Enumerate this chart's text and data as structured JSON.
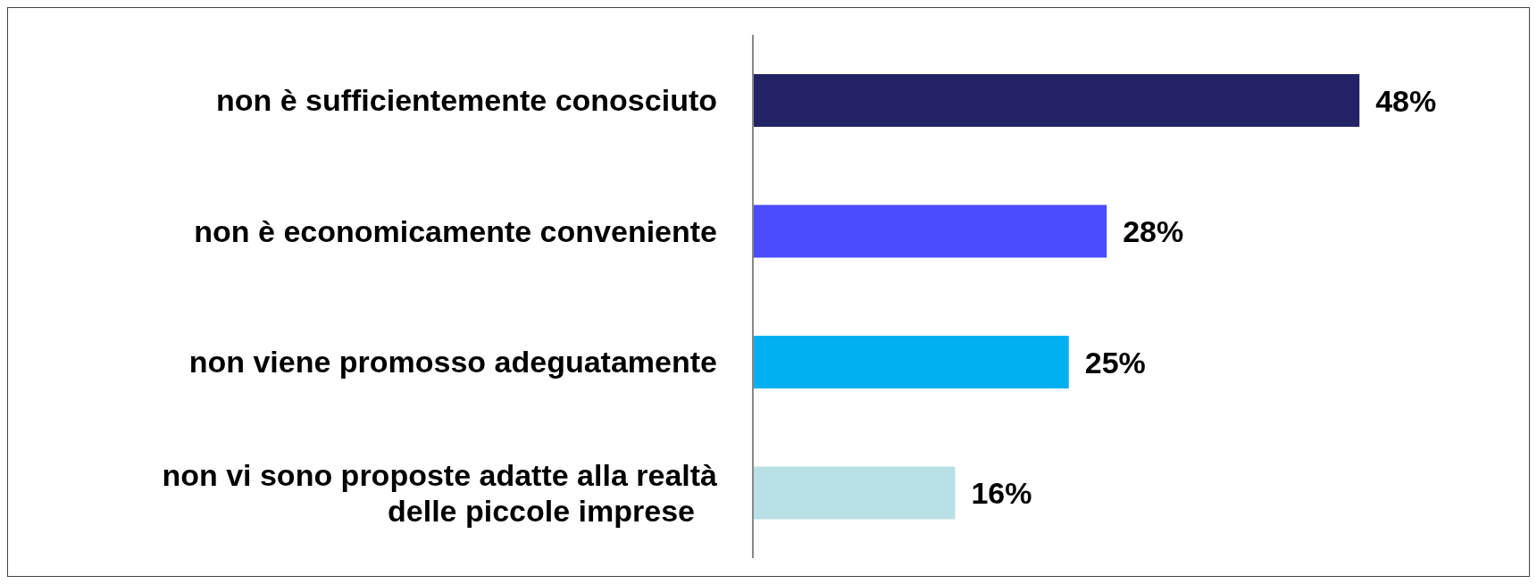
{
  "chart_data": {
    "type": "bar",
    "orientation": "horizontal",
    "categories": [
      "non è sufficientemente conosciuto",
      "non è economicamente conveniente",
      "non viene promosso adeguatamente",
      "non vi sono proposte adatte alla realtà delle piccole imprese"
    ],
    "values": [
      48,
      28,
      25,
      16
    ],
    "value_labels": [
      "48%",
      "28%",
      "25%",
      "16%"
    ],
    "colors": [
      "#222266",
      "#4b4bff",
      "#00b0f0",
      "#b9e0e4"
    ],
    "grid": false,
    "legend": false
  }
}
